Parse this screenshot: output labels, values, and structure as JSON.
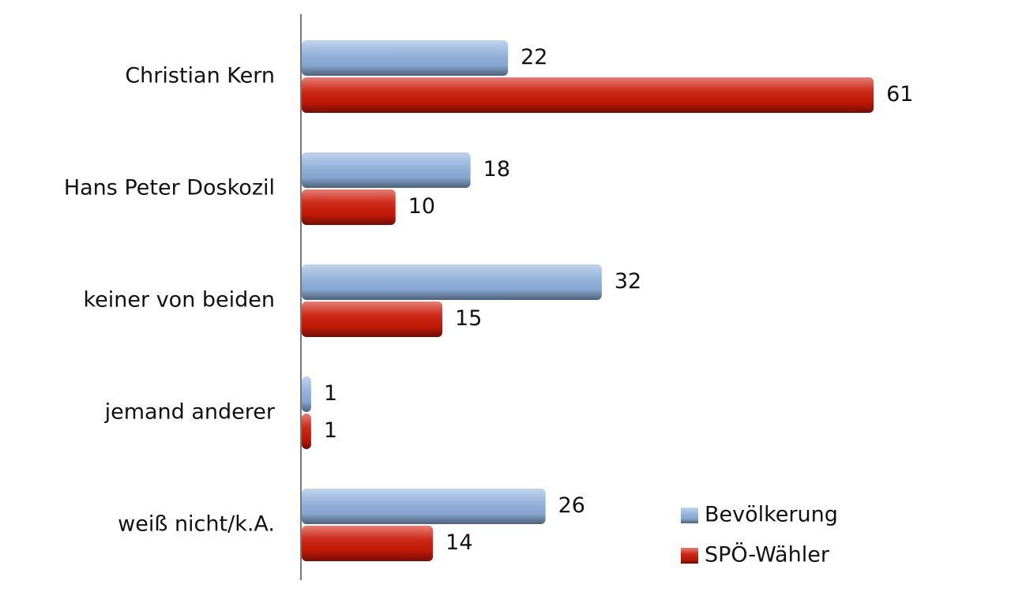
{
  "chart_data": {
    "type": "bar",
    "orientation": "horizontal",
    "categories": [
      "Christian Kern",
      "Hans Peter Doskozil",
      "keiner von beiden",
      "jemand anderer",
      "weiß nicht/k.A."
    ],
    "series": [
      {
        "name": "Bevölkerung",
        "color": "#8fb0dc",
        "values": [
          22,
          18,
          32,
          1,
          26
        ]
      },
      {
        "name": "SPÖ-Wähler",
        "color": "#cc1a08",
        "values": [
          61,
          10,
          15,
          1,
          14
        ]
      }
    ],
    "legend": "lower right"
  }
}
